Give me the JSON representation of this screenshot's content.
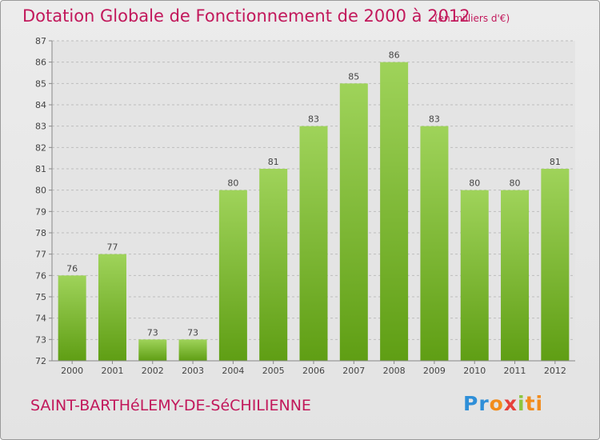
{
  "header": {
    "title": "Dotation Globale de Fonctionnement de 2000 à 2012",
    "unit_note": "(en milliers d'€)"
  },
  "footer": {
    "place": "SAINT-BARTHéLEMY-DE-SéCHILIENNE",
    "logo": [
      "Pr",
      "o",
      "x",
      "i",
      "ti"
    ]
  },
  "colors": {
    "title": "#c2185b",
    "bar_top": "#9fd35a",
    "bar_bottom": "#5f9e14",
    "grid": "#bdbdbd",
    "plot_bg": "#e4e4e4"
  },
  "chart_data": {
    "type": "bar",
    "categories": [
      "2000",
      "2001",
      "2002",
      "2003",
      "2004",
      "2005",
      "2006",
      "2007",
      "2008",
      "2009",
      "2010",
      "2011",
      "2012"
    ],
    "values": [
      76,
      77,
      73,
      73,
      80,
      81,
      83,
      85,
      86,
      83,
      80,
      80,
      81
    ],
    "ylim": [
      72,
      87
    ],
    "yticks": [
      72,
      73,
      74,
      75,
      76,
      77,
      78,
      79,
      80,
      81,
      82,
      83,
      84,
      85,
      86,
      87
    ],
    "grid": true,
    "data_labels": true
  }
}
